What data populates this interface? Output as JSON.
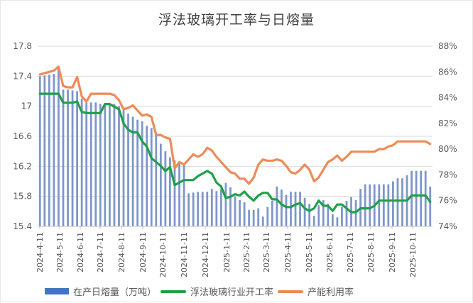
{
  "chart_data": {
    "type": "bar+line",
    "title": "浮法玻璃开工率与日熔量",
    "xlabel": "",
    "ylabel_left": "",
    "ylabel_right": "",
    "ylim_left": [
      15.4,
      17.8
    ],
    "ylim_right": [
      0.74,
      0.88
    ],
    "yticks_left": [
      "17.8",
      "17.4",
      "17",
      "16.6",
      "16.2",
      "15.8",
      "15.4"
    ],
    "yticks_right": [
      "88%",
      "86%",
      "84%",
      "82%",
      "80%",
      "78%",
      "76%",
      "74%"
    ],
    "x_tick_labels": [
      "2024-4-11",
      "2024-5-11",
      "2024-6-11",
      "2024-7-11",
      "2024-8-11",
      "2024-9-11",
      "2024-10-11",
      "2024-11-11",
      "2024-12-11",
      "2025-1-11",
      "2025-2-11",
      "2025-3-11",
      "2025-4-11",
      "2025-5-11",
      "2025-6-11",
      "2025-7-11",
      "2025-8-11",
      "2025-9-11",
      "2025-10-11"
    ],
    "grid": true,
    "legend_position": "bottom",
    "series": [
      {
        "name": "在产日熔量（万吨）",
        "type": "bar",
        "axis": "left",
        "color": "#7f97c9",
        "values": [
          17.4,
          17.41,
          17.42,
          17.43,
          17.5,
          17.22,
          17.22,
          17.21,
          17.2,
          17.1,
          17.05,
          17.05,
          17.05,
          17.03,
          17.03,
          17.03,
          17.03,
          17.0,
          16.98,
          16.9,
          16.86,
          16.82,
          16.8,
          16.74,
          16.71,
          16.65,
          16.5,
          16.4,
          16.32,
          16.28,
          16.26,
          16.22,
          15.84,
          15.85,
          15.86,
          15.86,
          15.86,
          15.9,
          15.87,
          15.9,
          15.98,
          15.92,
          15.8,
          15.75,
          15.72,
          15.62,
          15.62,
          15.64,
          15.53,
          15.66,
          15.74,
          15.93,
          15.89,
          15.82,
          15.86,
          15.86,
          15.86,
          15.78,
          15.7,
          15.54,
          15.68,
          15.75,
          15.7,
          15.56,
          15.52,
          15.66,
          15.74,
          15.79,
          15.75,
          15.9,
          15.96,
          15.96,
          15.96,
          15.96,
          15.96,
          15.96,
          16.0,
          16.04,
          16.04,
          16.08,
          16.14,
          16.14,
          16.14,
          16.14,
          15.93
        ]
      },
      {
        "name": "浮法玻璃行业开工率",
        "type": "line",
        "axis": "right",
        "color": "#1fa04a",
        "values": [
          0.843,
          0.843,
          0.843,
          0.843,
          0.843,
          0.836,
          0.836,
          0.836,
          0.837,
          0.829,
          0.828,
          0.828,
          0.828,
          0.828,
          0.835,
          0.835,
          0.833,
          0.831,
          0.82,
          0.815,
          0.813,
          0.813,
          0.806,
          0.802,
          0.793,
          0.79,
          0.787,
          0.783,
          0.786,
          0.772,
          0.774,
          0.776,
          0.776,
          0.776,
          0.779,
          0.781,
          0.783,
          0.781,
          0.774,
          0.771,
          0.762,
          0.763,
          0.765,
          0.764,
          0.767,
          0.763,
          0.76,
          0.764,
          0.766,
          0.766,
          0.761,
          0.761,
          0.757,
          0.755,
          0.755,
          0.757,
          0.758,
          0.754,
          0.752,
          0.754,
          0.76,
          0.756,
          0.756,
          0.752,
          0.757,
          0.757,
          0.754,
          0.751,
          0.751,
          0.754,
          0.754,
          0.754,
          0.756,
          0.76,
          0.76,
          0.76,
          0.76,
          0.76,
          0.76,
          0.76,
          0.764,
          0.764,
          0.764,
          0.764,
          0.759
        ]
      },
      {
        "name": "产能利用率",
        "type": "line",
        "axis": "right",
        "color": "#ed8b57",
        "values": [
          0.858,
          0.859,
          0.86,
          0.861,
          0.864,
          0.849,
          0.848,
          0.848,
          0.856,
          0.841,
          0.837,
          0.843,
          0.843,
          0.843,
          0.843,
          0.843,
          0.842,
          0.838,
          0.831,
          0.832,
          0.834,
          0.83,
          0.826,
          0.827,
          0.825,
          0.811,
          0.811,
          0.809,
          0.808,
          0.785,
          0.79,
          0.788,
          0.792,
          0.796,
          0.794,
          0.796,
          0.801,
          0.799,
          0.794,
          0.79,
          0.786,
          0.782,
          0.781,
          0.777,
          0.777,
          0.773,
          0.778,
          0.788,
          0.792,
          0.791,
          0.791,
          0.792,
          0.791,
          0.787,
          0.782,
          0.781,
          0.784,
          0.788,
          0.784,
          0.775,
          0.778,
          0.784,
          0.79,
          0.792,
          0.795,
          0.791,
          0.794,
          0.798,
          0.798,
          0.798,
          0.798,
          0.798,
          0.798,
          0.8,
          0.8,
          0.802,
          0.803,
          0.806,
          0.806,
          0.806,
          0.806,
          0.806,
          0.806,
          0.806,
          0.804
        ]
      }
    ]
  },
  "legend": {
    "items": [
      {
        "label": "在产日熔量（万吨）",
        "color": "#4472c4",
        "kind": "bar"
      },
      {
        "label": "浮法玻璃行业开工率",
        "color": "#1fa04a",
        "kind": "line"
      },
      {
        "label": "产能利用率",
        "color": "#ed8b57",
        "kind": "line"
      }
    ]
  },
  "colors": {
    "gridline": "#d9d9d9",
    "axis_text": "#595959",
    "title": "#404040"
  }
}
